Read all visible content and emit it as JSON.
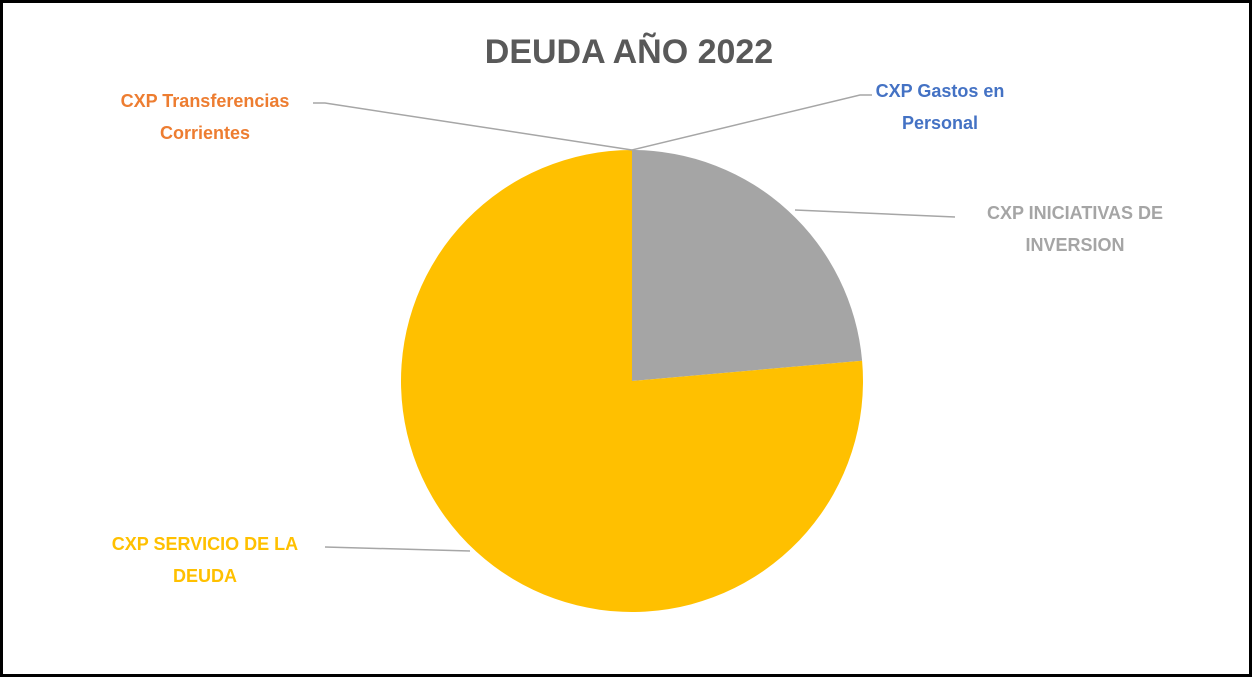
{
  "chart_data": {
    "type": "pie",
    "title": "DEUDA AÑO 2022",
    "categories": [
      "CXP Gastos en Personal",
      "CXP INICIATIVAS DE INVERSION",
      "CXP SERVICIO DE LA DEUDA",
      "CXP Transferencias Corrientes"
    ],
    "values": [
      0,
      23.6,
      76.4,
      0
    ],
    "colors": [
      "#4472c4",
      "#a5a5a5",
      "#ffc000",
      "#ed7d31"
    ]
  }
}
